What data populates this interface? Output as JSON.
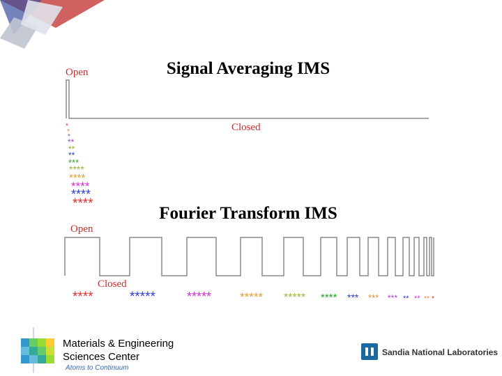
{
  "signal_averaging": {
    "title": "Signal Averaging IMS",
    "open_label": "Open",
    "closed_label": "Closed",
    "asterisks": [
      {
        "text": "*",
        "color": "#e03030"
      },
      {
        "text": "*",
        "color": "#e08a30"
      },
      {
        "text": "*",
        "color": "#a040c0"
      },
      {
        "text": "**",
        "color": "#a040c0"
      },
      {
        "text": "**",
        "color": "#a0a030"
      },
      {
        "text": "**",
        "color": "#3040b0"
      },
      {
        "text": "***",
        "color": "#30a030"
      },
      {
        "text": "****",
        "color": "#a0b040"
      },
      {
        "text": "****",
        "color": "#e0a030"
      },
      {
        "text": "****",
        "color": "#d030d0"
      },
      {
        "text": "****",
        "color": "#3040d0"
      },
      {
        "text": "****",
        "color": "#e03030"
      }
    ]
  },
  "fourier_transform": {
    "title": "Fourier Transform IMS",
    "open_label": "Open",
    "closed_label": "Closed",
    "asterisks": [
      {
        "text": "****",
        "color": "#e03030"
      },
      {
        "text": "*****",
        "color": "#3040d0"
      },
      {
        "text": "*****",
        "color": "#d030d0"
      },
      {
        "text": "*****",
        "color": "#e0a030"
      },
      {
        "text": "*****",
        "color": "#a0b040"
      },
      {
        "text": "****",
        "color": "#30a030"
      },
      {
        "text": "***",
        "color": "#3040b0"
      },
      {
        "text": "***",
        "color": "#e08a30"
      },
      {
        "text": "***",
        "color": "#a040c0"
      },
      {
        "text": "**",
        "color": "#3040b0"
      },
      {
        "text": "**",
        "color": "#d030d0"
      },
      {
        "text": "**",
        "color": "#e08a30"
      },
      {
        "text": "*",
        "color": "#e03030"
      }
    ]
  },
  "footer": {
    "center_line1": "Materials & Engineering",
    "center_line2": "Sciences Center",
    "tagline": "Atoms to Continuum",
    "lab": "Sandia National Laboratories"
  }
}
